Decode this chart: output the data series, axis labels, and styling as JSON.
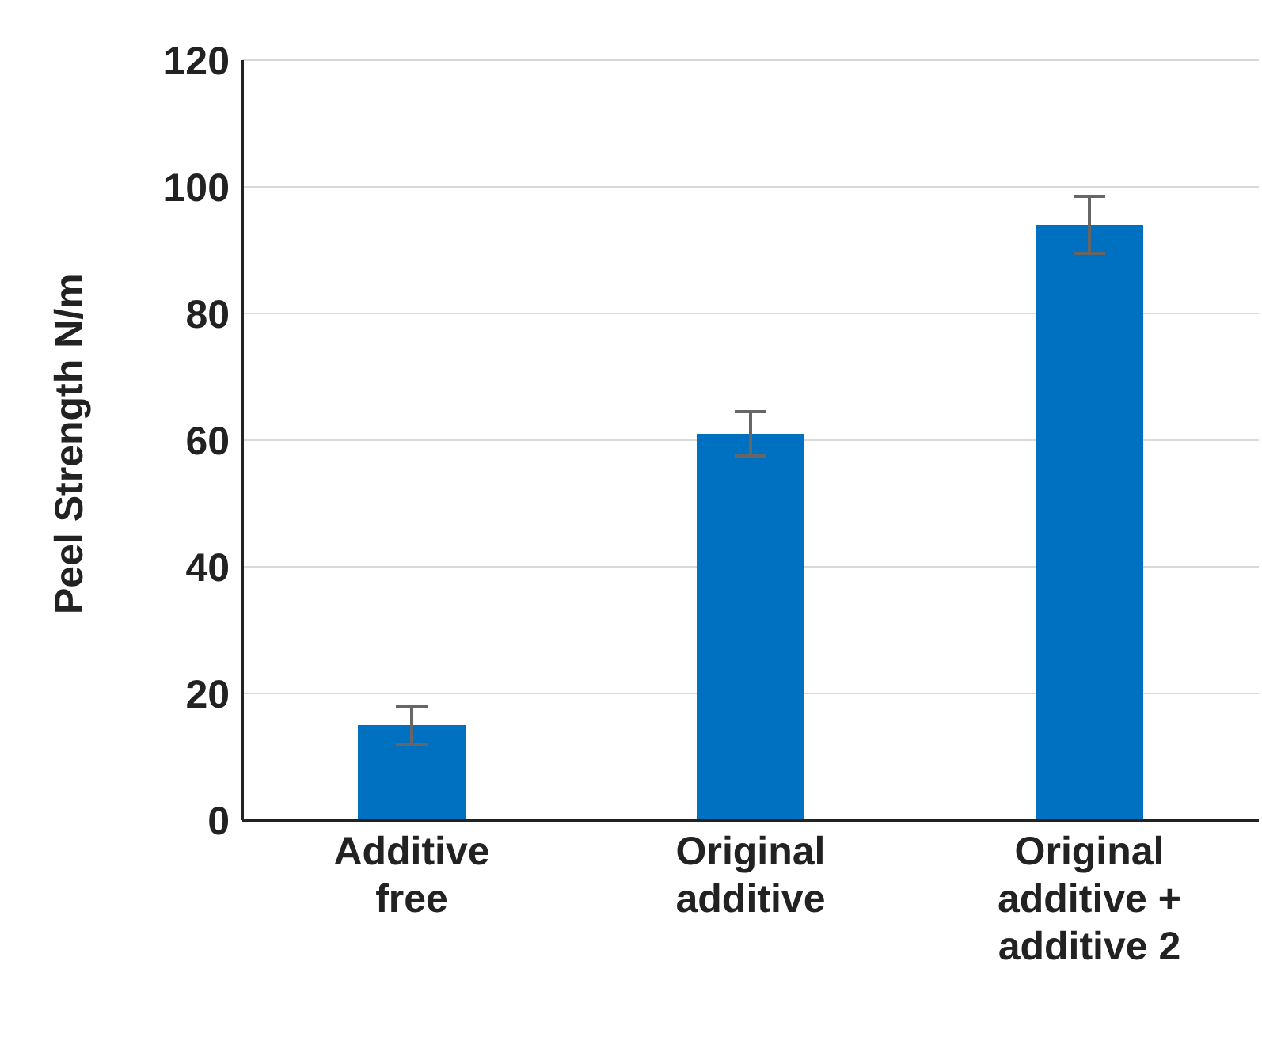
{
  "chart_data": {
    "type": "bar",
    "ylabel": "Peel Strength N/m",
    "categories": [
      "Additive free",
      "Original additive",
      "Original additive + additive 2"
    ],
    "values": [
      15,
      61,
      94
    ],
    "color": "#0070c0",
    "errors": [
      3,
      3.5,
      4.5
    ],
    "ylim": [
      0,
      120
    ],
    "yticks": [
      0,
      20,
      40,
      60,
      80,
      100,
      120
    ],
    "grid": "y"
  }
}
